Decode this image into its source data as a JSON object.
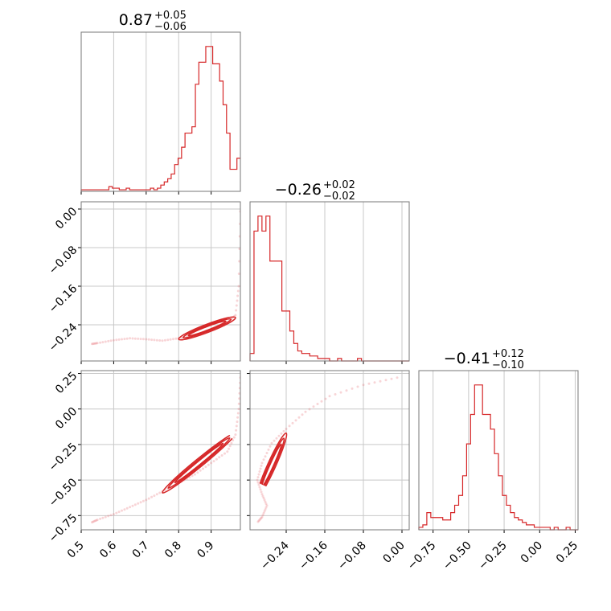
{
  "chart_data": {
    "type": "corner",
    "color": "#d62728",
    "grid": true,
    "parameters": [
      {
        "title_main": "0.87",
        "title_plus": "+0.05",
        "title_minus": "−0.06",
        "range": [
          0.5,
          0.99
        ],
        "ticks": [
          0.5,
          0.6,
          0.7,
          0.8,
          0.9
        ],
        "tick_labels": [
          "0.5",
          "0.6",
          "0.7",
          "0.8",
          "0.9"
        ]
      },
      {
        "title_main": "−0.26",
        "title_plus": "+0.02",
        "title_minus": "−0.02",
        "range": [
          -0.315,
          0.015
        ],
        "ticks": [
          -0.24,
          -0.16,
          -0.08,
          0.0
        ],
        "tick_labels": [
          "−0.24",
          "−0.16",
          "−0.08",
          "0.00"
        ]
      },
      {
        "title_main": "−0.41",
        "title_plus": "+0.12",
        "title_minus": "−0.10",
        "range": [
          -0.85,
          0.27
        ],
        "ticks": [
          -0.75,
          -0.5,
          -0.25,
          0.0,
          0.25
        ],
        "tick_labels": [
          "−0.75",
          "−0.50",
          "−0.25",
          "0.00",
          "0.25"
        ]
      }
    ],
    "histograms": [
      {
        "range": [
          0.5,
          0.99
        ],
        "counts": [
          1,
          1,
          1,
          1,
          1,
          1,
          1,
          1,
          3,
          2,
          2,
          1,
          1,
          2,
          1,
          1,
          1,
          1,
          1,
          1,
          2,
          1,
          2,
          4,
          6,
          8,
          11,
          17,
          21,
          28,
          37,
          37,
          41,
          68,
          82,
          82,
          92,
          92,
          81,
          81,
          70,
          55,
          37,
          14,
          14,
          21
        ]
      },
      {
        "range": [
          -0.315,
          0.015
        ],
        "counts": [
          3,
          52,
          58,
          52,
          58,
          40,
          40,
          40,
          20,
          20,
          12,
          7,
          4,
          3,
          3,
          2,
          2,
          1,
          1,
          1,
          0,
          0,
          1,
          0,
          0,
          0,
          0,
          1,
          0,
          0,
          0,
          0,
          0,
          0,
          0,
          0,
          0,
          0,
          0,
          0
        ]
      },
      {
        "range": [
          -0.85,
          0.27
        ],
        "counts": [
          1,
          2,
          7,
          5,
          5,
          5,
          4,
          4,
          7,
          10,
          14,
          22,
          35,
          47,
          59,
          59,
          47,
          47,
          41,
          31,
          22,
          14,
          10,
          7,
          5,
          4,
          3,
          2,
          2,
          1,
          1,
          1,
          1,
          0,
          1,
          0,
          0,
          1,
          0,
          0
        ]
      }
    ],
    "pairs": [
      {
        "x": 0,
        "y": 1,
        "curve": [
          [
            0.99,
            -0.005
          ],
          [
            0.985,
            -0.16
          ],
          [
            0.975,
            -0.22
          ],
          [
            0.95,
            -0.235
          ],
          [
            0.9,
            -0.25
          ],
          [
            0.85,
            -0.262
          ],
          [
            0.8,
            -0.268
          ],
          [
            0.75,
            -0.273
          ],
          [
            0.7,
            -0.27
          ],
          [
            0.65,
            -0.268
          ],
          [
            0.6,
            -0.272
          ],
          [
            0.55,
            -0.278
          ],
          [
            0.53,
            -0.28
          ]
        ],
        "contour_x": [
          0.8,
          0.975
        ],
        "contour_y": [
          -0.27,
          -0.225
        ]
      },
      {
        "x": 0,
        "y": 2,
        "curve": [
          [
            0.99,
            0.22
          ],
          [
            0.985,
            0.0
          ],
          [
            0.975,
            -0.18
          ],
          [
            0.95,
            -0.3
          ],
          [
            0.9,
            -0.38
          ],
          [
            0.85,
            -0.46
          ],
          [
            0.8,
            -0.52
          ],
          [
            0.75,
            -0.58
          ],
          [
            0.7,
            -0.64
          ],
          [
            0.65,
            -0.69
          ],
          [
            0.6,
            -0.74
          ],
          [
            0.55,
            -0.78
          ],
          [
            0.53,
            -0.8
          ]
        ],
        "contour_x": [
          0.75,
          0.975
        ],
        "contour_y": [
          -0.59,
          -0.17
        ]
      },
      {
        "x": 1,
        "y": 2,
        "curve": [
          [
            -0.01,
            0.22
          ],
          [
            -0.08,
            0.17
          ],
          [
            -0.15,
            0.09
          ],
          [
            -0.2,
            -0.02
          ],
          [
            -0.24,
            -0.14
          ],
          [
            -0.27,
            -0.24
          ],
          [
            -0.29,
            -0.38
          ],
          [
            -0.3,
            -0.5
          ],
          [
            -0.29,
            -0.6
          ],
          [
            -0.28,
            -0.68
          ],
          [
            -0.29,
            -0.76
          ],
          [
            -0.3,
            -0.8
          ]
        ],
        "contour_x": [
          -0.3,
          -0.24
        ],
        "contour_y": [
          -0.62,
          -0.17
        ]
      }
    ]
  }
}
